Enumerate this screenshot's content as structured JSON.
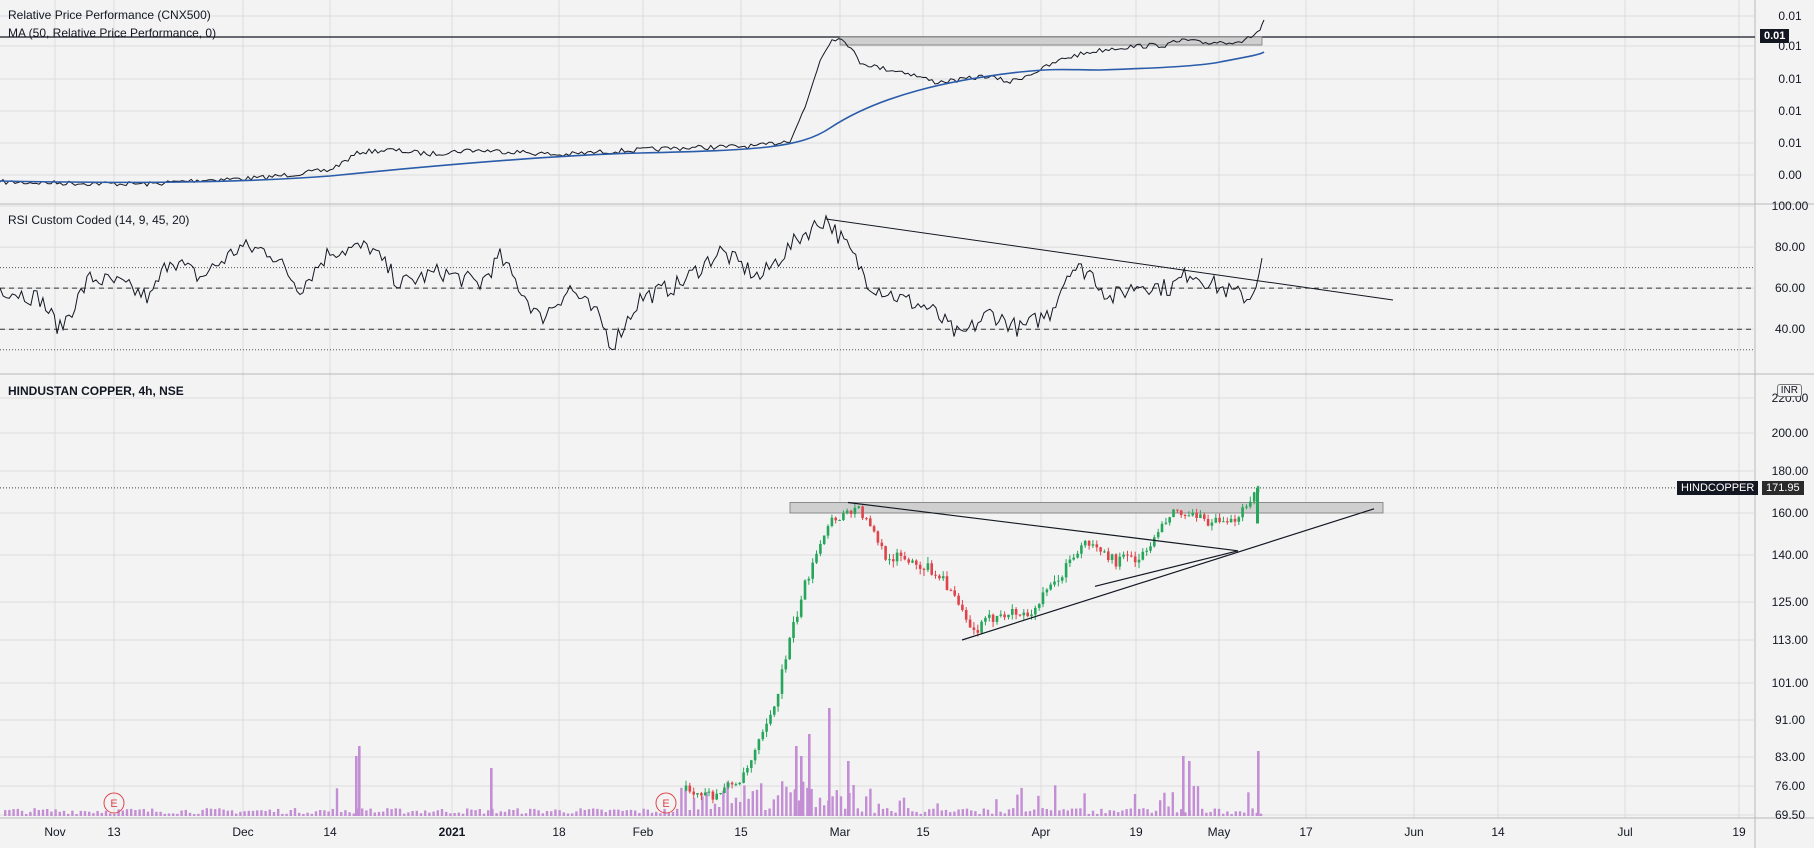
{
  "panels": {
    "rpp": {
      "title": "Relative Price Performance (CNX500)",
      "ma_title": "MA (50, Relative Price Performance, 0)",
      "last_value": "0.01",
      "axis_labels": [
        "0.01",
        "0.01",
        "0.01",
        "0.01",
        "0.01",
        "0.01",
        "0.00"
      ]
    },
    "rsi": {
      "title": "RSI Custom Coded (14, 9, 45, 20)",
      "axis_labels": [
        "100.00",
        "80.00",
        "60.00",
        "40.00"
      ]
    },
    "price": {
      "title": "HINDUSTAN COPPER, 4h, NSE",
      "currency": "INR",
      "symbol": "HINDCOPPER",
      "last_price": "171.95",
      "axis_labels": [
        "220.00",
        "200.00",
        "180.00",
        "160.00",
        "140.00",
        "125.00",
        "113.00",
        "101.00",
        "91.00",
        "83.00",
        "76.00",
        "69.50"
      ]
    }
  },
  "x_axis_labels": [
    "Nov",
    "13",
    "Dec",
    "14",
    "2021",
    "18",
    "Feb",
    "15",
    "Mar",
    "15",
    "Apr",
    "19",
    "May",
    "17",
    "Jun",
    "14",
    "Jul",
    "19"
  ],
  "earnings_marker": "E",
  "colors": {
    "background": "#f3f3f3",
    "grid": "#dcdcdc",
    "line": "#131722",
    "ma": "#2a5caa",
    "up": "#26a65b",
    "down": "#e0444a",
    "volume": "#c38ed4",
    "zone": "#cfcfcf"
  },
  "chart_data": [
    {
      "type": "line",
      "title": "Relative Price Performance (CNX500)",
      "series": [
        {
          "name": "Relative Price Performance (CNX500)",
          "x": [
            "Nov 1",
            "Nov 13",
            "Dec 1",
            "Dec 14",
            "Jan 1",
            "Jan 18",
            "Feb 1",
            "Feb 15",
            "Feb 26",
            "Mar 1",
            "Mar 15",
            "Apr 1",
            "Apr 19",
            "May 1",
            "May 10"
          ],
          "values": [
            0.0,
            0.0,
            0.0,
            0.0003,
            0.0004,
            0.0004,
            0.0004,
            0.0008,
            0.004,
            0.0045,
            0.0036,
            0.0038,
            0.0043,
            0.0044,
            0.005
          ]
        },
        {
          "name": "MA (50, Relative Price Performance, 0)",
          "x": [
            "Nov 1",
            "Dec 14",
            "Jan 18",
            "Feb 15",
            "Mar 1",
            "Apr 1",
            "Apr 19",
            "May 10"
          ],
          "values": [
            0.0,
            0.0001,
            0.0004,
            0.0005,
            0.0015,
            0.0036,
            0.0037,
            0.0041
          ]
        }
      ]
    },
    {
      "type": "line",
      "title": "RSI Custom Coded (14, 9, 45, 20)",
      "ylim": [
        25,
        100
      ],
      "reference_lines": [
        70,
        60,
        40
      ],
      "series": [
        {
          "name": "RSI",
          "x": [
            "Nov 1",
            "Nov 13",
            "Nov 25",
            "Dec 8",
            "Dec 20",
            "Jan 1",
            "Jan 12",
            "Jan 26",
            "Feb 1",
            "Feb 15",
            "Feb 26",
            "Mar 8",
            "Mar 19",
            "Apr 1",
            "Apr 12",
            "Apr 23",
            "May 3",
            "May 10"
          ],
          "values": [
            58,
            40,
            62,
            75,
            80,
            66,
            60,
            35,
            55,
            68,
            94,
            62,
            35,
            45,
            70,
            62,
            58,
            72
          ]
        }
      ]
    },
    {
      "type": "candlestick",
      "title": "HINDUSTAN COPPER, 4h, NSE",
      "ylim": [
        69.5,
        220
      ],
      "last": 171.95,
      "x": [
        "Feb 8",
        "Feb 12",
        "Feb 16",
        "Feb 19",
        "Feb 23",
        "Feb 26",
        "Mar 1",
        "Mar 5",
        "Mar 10",
        "Mar 15",
        "Mar 19",
        "Mar 24",
        "Mar 31",
        "Apr 6",
        "Apr 12",
        "Apr 16",
        "Apr 22",
        "Apr 27",
        "May 3",
        "May 7",
        "May 10"
      ],
      "close": [
        75,
        74,
        78,
        92,
        125,
        156,
        163,
        140,
        138,
        133,
        115,
        122,
        121,
        132,
        146,
        138,
        140,
        160,
        157,
        154,
        172
      ],
      "volume_series": "volume"
    }
  ]
}
